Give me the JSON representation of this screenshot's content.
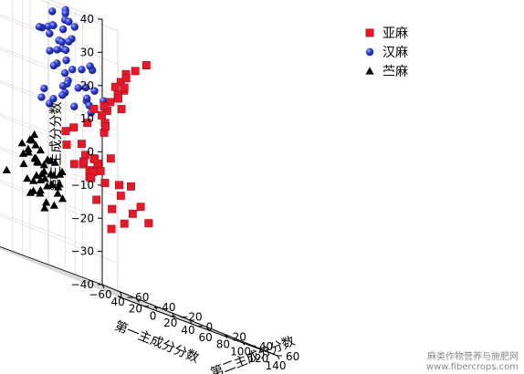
{
  "chart_data": {
    "type": "scatter",
    "projection": "3d",
    "title": "",
    "xlabel": "第一主成分分数",
    "ylabel": "第二主成分分数",
    "zlabel": "第三主成分分数",
    "x_ticks": [
      "−60",
      "40",
      "20",
      "0",
      "20",
      "40",
      "60",
      "80",
      "100",
      "120",
      "140"
    ],
    "y_ticks": [
      "−60",
      "−40",
      "−20",
      "0",
      "20",
      "40",
      "60"
    ],
    "z_ticks": [
      "−40",
      "−30",
      "−20",
      "−10",
      "0",
      "10",
      "20",
      "30",
      "40"
    ],
    "xlim": [
      -60,
      140
    ],
    "ylim": [
      -60,
      60
    ],
    "zlim": [
      -40,
      40
    ],
    "grid": true,
    "legend_position": "top-right",
    "series": [
      {
        "name": "亚麻",
        "marker": "square",
        "color": "#e4192a",
        "points": [
          [
            40,
            -17,
            8
          ],
          [
            32,
            -22,
            5
          ],
          [
            45,
            -7,
            10
          ],
          [
            37,
            -10,
            -2
          ],
          [
            47,
            -9,
            7
          ],
          [
            50,
            -10,
            9
          ],
          [
            52,
            -14,
            12
          ],
          [
            55,
            -12,
            14
          ],
          [
            49,
            -18,
            13
          ],
          [
            56,
            -15,
            15
          ],
          [
            60,
            -13,
            17
          ],
          [
            58,
            -6,
            20
          ],
          [
            63,
            -9,
            19
          ],
          [
            59,
            -2,
            22
          ],
          [
            63,
            -3,
            26
          ],
          [
            67,
            -7,
            23
          ],
          [
            44,
            6,
            16
          ],
          [
            43,
            2,
            22
          ],
          [
            37,
            10,
            24
          ],
          [
            40,
            12,
            27
          ],
          [
            43,
            17,
            29
          ],
          [
            45,
            24,
            32
          ],
          [
            38,
            -20,
            1
          ],
          [
            29,
            -26,
            3
          ],
          [
            33,
            -14,
            -2
          ],
          [
            30,
            -26,
            -1
          ],
          [
            35,
            -17,
            -5
          ],
          [
            41,
            -10,
            -4
          ],
          [
            49,
            -13,
            -5
          ],
          [
            52,
            -17,
            -3
          ],
          [
            48,
            -25,
            -4
          ],
          [
            56,
            -22,
            -2
          ],
          [
            54,
            -29,
            -4
          ],
          [
            60,
            -26,
            -6
          ],
          [
            61,
            -28,
            -8
          ],
          [
            57,
            -15,
            -8
          ],
          [
            61,
            -7,
            -7
          ],
          [
            66,
            -9,
            -10
          ],
          [
            70,
            -4,
            -6
          ],
          [
            75,
            -6,
            -14
          ],
          [
            78,
            -2,
            -11
          ],
          [
            84,
            0,
            -15
          ],
          [
            72,
            -20,
            -21
          ],
          [
            67,
            -7,
            -18
          ],
          [
            28,
            -19,
            -6
          ],
          [
            44,
            -18,
            -6
          ],
          [
            50,
            -22,
            -8
          ],
          [
            58,
            -22,
            -14
          ],
          [
            65,
            -15,
            -15
          ],
          [
            53,
            -8,
            0
          ]
        ]
      },
      {
        "name": "汉麻",
        "marker": "sphere",
        "color": "#2332c8",
        "points": [
          [
            -18,
            5,
            45
          ],
          [
            -14,
            9,
            35
          ],
          [
            -23,
            8,
            39
          ],
          [
            -20,
            6,
            38
          ],
          [
            -16,
            3,
            36
          ],
          [
            -20,
            -3,
            33
          ],
          [
            -12,
            -1,
            33
          ],
          [
            -7,
            0,
            36
          ],
          [
            -4,
            -2,
            30
          ],
          [
            -15,
            3,
            27
          ],
          [
            -24,
            6,
            29
          ],
          [
            -19,
            10,
            31
          ],
          [
            -28,
            9,
            27
          ],
          [
            -27,
            1,
            33
          ],
          [
            -32,
            4,
            37
          ],
          [
            -38,
            5,
            32
          ],
          [
            -35,
            4,
            30
          ],
          [
            -30,
            -5,
            31
          ],
          [
            -24,
            -11,
            31
          ],
          [
            -18,
            -7,
            25
          ],
          [
            -16,
            -3,
            22
          ],
          [
            -13,
            2,
            24
          ],
          [
            -23,
            10,
            18
          ],
          [
            -18,
            6,
            17
          ],
          [
            -13,
            1,
            20
          ],
          [
            -6,
            9,
            23
          ],
          [
            -6,
            17,
            24
          ],
          [
            -1,
            12,
            25
          ],
          [
            -9,
            14,
            18
          ],
          [
            -11,
            16,
            14
          ],
          [
            -12,
            20,
            11
          ],
          [
            -5,
            18,
            18
          ],
          [
            -4,
            24,
            16
          ],
          [
            3,
            7,
            15
          ],
          [
            -3,
            0,
            22
          ],
          [
            -3,
            -7,
            16
          ],
          [
            -26,
            -8,
            10
          ],
          [
            -20,
            -10,
            13
          ],
          [
            -23,
            -4,
            9
          ],
          [
            -25,
            9,
            14
          ],
          [
            -22,
            5,
            13
          ],
          [
            -12,
            -8,
            21
          ],
          [
            -11,
            -9,
            11
          ],
          [
            -10,
            6,
            11
          ],
          [
            -32,
            9,
            29
          ],
          [
            -31,
            7,
            26
          ],
          [
            -8,
            16,
            13
          ],
          [
            -16,
            13,
            17
          ]
        ]
      },
      {
        "name": "苎麻",
        "marker": "triangle",
        "color": "#000000",
        "points": [
          [
            -30,
            -20,
            -6
          ],
          [
            -26,
            -15,
            -4
          ],
          [
            -22,
            -16,
            -2
          ],
          [
            -21,
            -12,
            -6
          ],
          [
            -25,
            -11,
            -10
          ],
          [
            -28,
            -10,
            -10
          ],
          [
            -24,
            -10,
            -15
          ],
          [
            -20,
            -10,
            -12
          ],
          [
            -17,
            -12,
            -10
          ],
          [
            -16,
            -10,
            -8
          ],
          [
            -19,
            -17,
            -5
          ],
          [
            -24,
            -18,
            -4
          ],
          [
            -23,
            -20,
            -7
          ],
          [
            -17,
            -18,
            -9
          ],
          [
            -15,
            -19,
            -14
          ],
          [
            -13,
            -14,
            -14
          ],
          [
            -11,
            -11,
            -8
          ],
          [
            -12,
            -7,
            -8
          ],
          [
            -9,
            -10,
            -12
          ],
          [
            -8,
            -12,
            -15
          ],
          [
            -5,
            -8,
            -11
          ],
          [
            -6,
            -13,
            -15
          ],
          [
            -12,
            -18,
            -18
          ],
          [
            -18,
            -24,
            -16
          ],
          [
            -22,
            -24,
            -12
          ],
          [
            -27,
            -21,
            -9
          ],
          [
            -15,
            -11,
            -16
          ],
          [
            -10,
            -5,
            -14
          ],
          [
            -7,
            -5,
            -10
          ],
          [
            -4,
            -10,
            -15
          ],
          [
            -14,
            -9,
            -12
          ],
          [
            -9,
            -7,
            -17
          ],
          [
            -14,
            -17,
            -19
          ],
          [
            -18,
            -13,
            -13
          ],
          [
            -20,
            -18,
            -16
          ],
          [
            -23,
            -15,
            -9
          ],
          [
            -27,
            -17,
            -8
          ],
          [
            -17,
            -20,
            -19
          ],
          [
            -10,
            -15,
            -21
          ],
          [
            -7,
            -11,
            -21
          ],
          [
            -5,
            -6,
            -18
          ],
          [
            -42,
            -38,
            -7
          ],
          [
            -50,
            -35,
            -12
          ],
          [
            -43,
            -23,
            -16
          ],
          [
            -31,
            -13,
            -20
          ],
          [
            -24,
            -7,
            -23
          ]
        ]
      }
    ]
  },
  "watermark": {
    "line1": "麻类作物营养与施肥网",
    "line2": "www.fibercrops.com"
  }
}
